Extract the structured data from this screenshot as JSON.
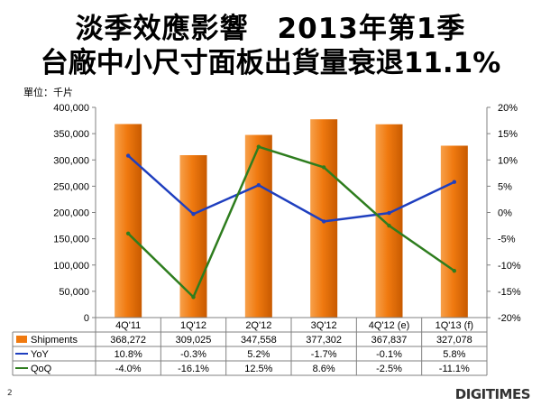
{
  "title_line1": "淡季效應影響　2013年第1季",
  "title_line2": "台廠中小尺寸面板出貨量衰退11.1%",
  "unit_label": "單位：千片",
  "page_number": "2",
  "logo_text": "DIGITIMES",
  "chart_data": {
    "type": "bar",
    "categories": [
      "4Q'11",
      "1Q'12",
      "2Q'12",
      "3Q'12",
      "4Q'12 (e)",
      "1Q'13 (f)"
    ],
    "left_axis": {
      "ylim": [
        0,
        400000
      ],
      "ticks": [
        "400,000",
        "350,000",
        "300,000",
        "250,000",
        "200,000",
        "150,000",
        "100,000",
        "50,000",
        "0"
      ],
      "tick_values": [
        400000,
        350000,
        300000,
        250000,
        200000,
        150000,
        100000,
        50000,
        0
      ]
    },
    "right_axis": {
      "ylim": [
        -20,
        20
      ],
      "ticks": [
        "20%",
        "15%",
        "10%",
        "5%",
        "0%",
        "-5%",
        "-10%",
        "-15%",
        "-20%"
      ],
      "tick_values": [
        20,
        15,
        10,
        5,
        0,
        -5,
        -10,
        -15,
        -20
      ]
    },
    "series": [
      {
        "name": "Shipments",
        "type": "bar",
        "axis": "left",
        "color": "#F07A10",
        "values": [
          368272,
          309025,
          347558,
          377302,
          367837,
          327078
        ],
        "labels": [
          "368,272",
          "309,025",
          "347,558",
          "377,302",
          "367,837",
          "327,078"
        ]
      },
      {
        "name": "YoY",
        "type": "line",
        "axis": "right",
        "color": "#1F3FBF",
        "values": [
          10.8,
          -0.3,
          5.2,
          -1.7,
          -0.1,
          5.8
        ],
        "labels": [
          "10.8%",
          "-0.3%",
          "5.2%",
          "-1.7%",
          "-0.1%",
          "5.8%"
        ]
      },
      {
        "name": "QoQ",
        "type": "line",
        "axis": "right",
        "color": "#2E7D1E",
        "values": [
          -4.0,
          -16.1,
          12.5,
          8.6,
          -2.5,
          -11.1
        ],
        "labels": [
          "-4.0%",
          "-16.1%",
          "12.5%",
          "8.6%",
          "-2.5%",
          "-11.1%"
        ]
      }
    ],
    "grid": false,
    "legend": "data-table-bottom"
  }
}
